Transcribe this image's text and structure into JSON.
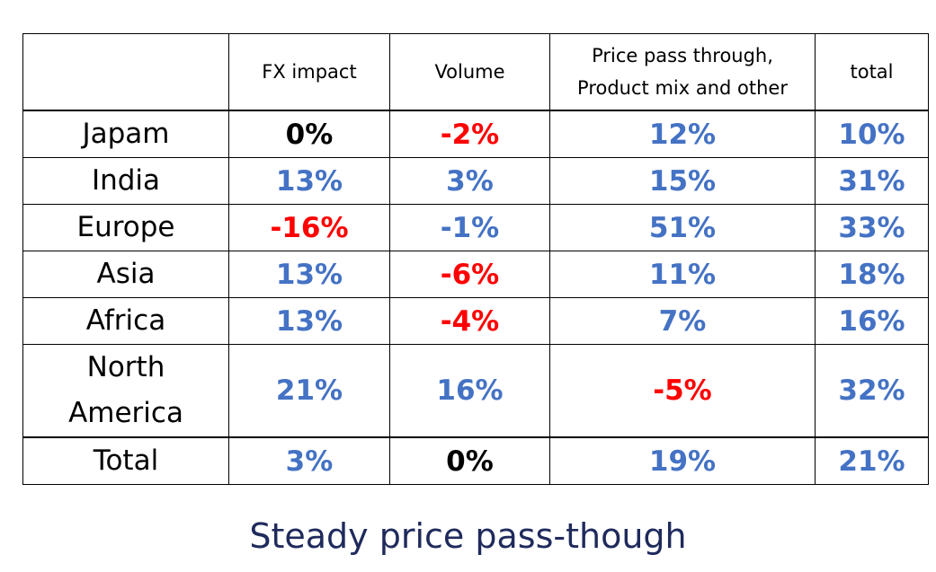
{
  "table": {
    "headers": [
      "",
      "FX impact",
      "Volume",
      "Price pass through,\nProduct mix and other",
      "total"
    ],
    "rows": [
      {
        "region": "Japam",
        "fx": "0%",
        "volume": "-2%",
        "price": "12%",
        "total": "10%"
      },
      {
        "region": "India",
        "fx": "13%",
        "volume": "3%",
        "price": "15%",
        "total": "31%"
      },
      {
        "region": "Europe",
        "fx": "-16%",
        "volume": "-1%",
        "price": "51%",
        "total": "33%"
      },
      {
        "region": "Asia",
        "fx": "13%",
        "volume": "-6%",
        "price": "11%",
        "total": "18%"
      },
      {
        "region": "Africa",
        "fx": "13%",
        "volume": "-4%",
        "price": "7%",
        "total": "16%"
      },
      {
        "region": "North America",
        "fx": "21%",
        "volume": "16%",
        "price": "-5%",
        "total": "32%"
      },
      {
        "region": "Total",
        "fx": "3%",
        "volume": "0%",
        "price": "19%",
        "total": "21%"
      }
    ]
  },
  "colors": {
    "positive": "#4472C4",
    "negative": "#FF0000",
    "zero": "#000000",
    "caption": "#1F2A5C"
  },
  "caption": "Steady price pass-though"
}
